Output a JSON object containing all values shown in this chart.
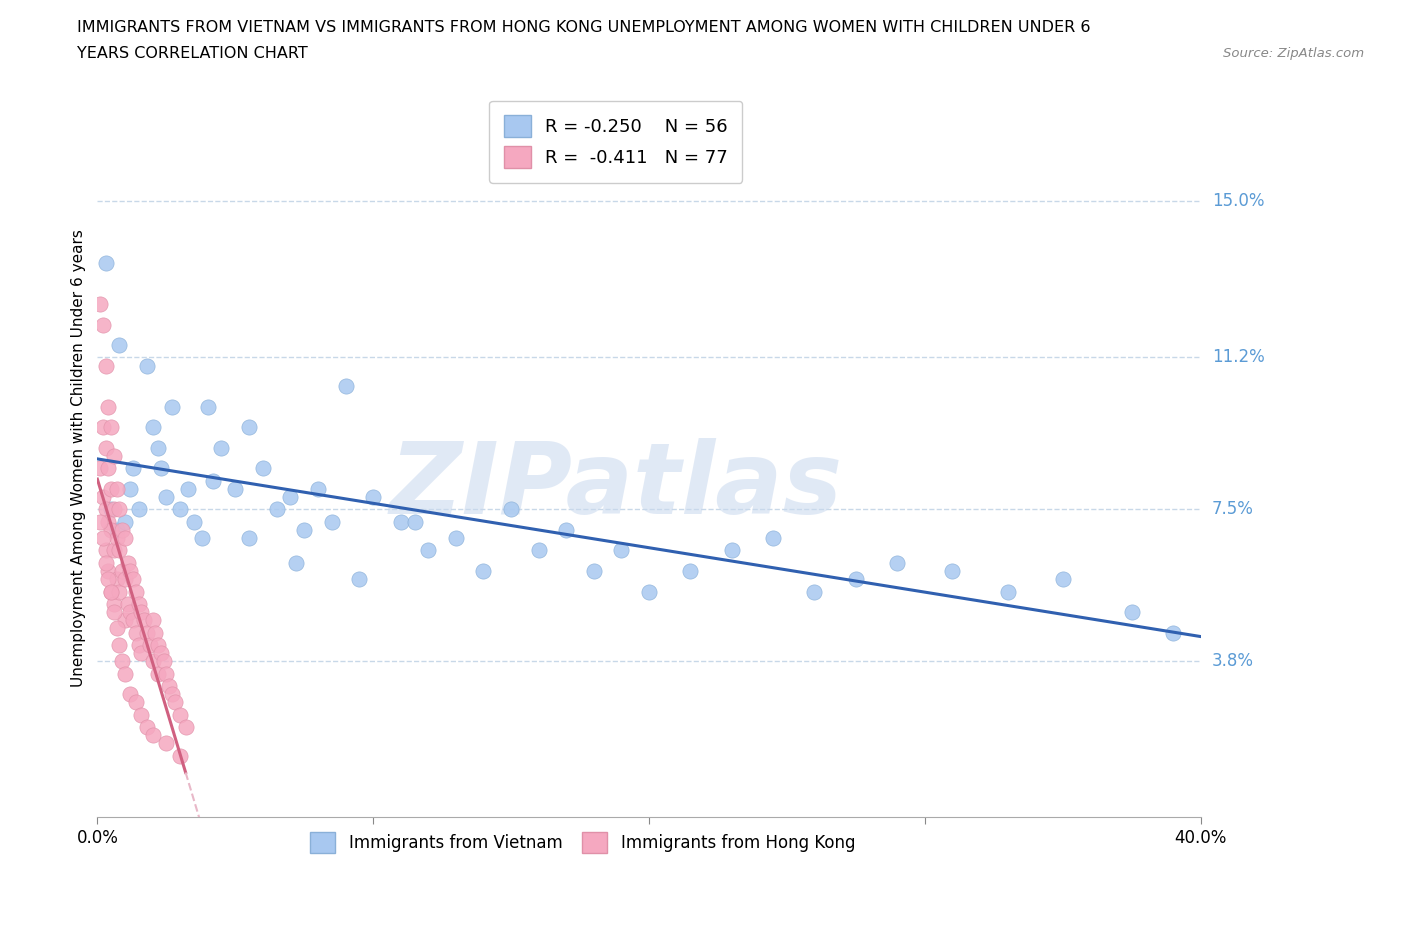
{
  "title_line1": "IMMIGRANTS FROM VIETNAM VS IMMIGRANTS FROM HONG KONG UNEMPLOYMENT AMONG WOMEN WITH CHILDREN UNDER 6",
  "title_line2": "YEARS CORRELATION CHART",
  "source": "Source: ZipAtlas.com",
  "ylabel": "Unemployment Among Women with Children Under 6 years",
  "xlim": [
    0.0,
    0.4
  ],
  "ylim": [
    0.0,
    0.175
  ],
  "yticks": [
    0.038,
    0.075,
    0.112,
    0.15
  ],
  "ytick_labels": [
    "3.8%",
    "7.5%",
    "11.2%",
    "15.0%"
  ],
  "xtick_labels": [
    "0.0%",
    "40.0%"
  ],
  "legend_r1": "R = -0.250",
  "legend_n1": "N = 56",
  "legend_r2": "R =  -0.411",
  "legend_n2": "N = 77",
  "color_vietnam": "#a8c8f0",
  "color_hongkong": "#f5a8c0",
  "color_vietnam_line": "#3060b0",
  "color_hongkong_line": "#d06080",
  "color_hongkong_line_dashed": "#e8b8c8",
  "color_ytick_labels": "#5b9bd5",
  "color_grid": "#c8d8e8",
  "watermark_text": "ZIPatlas",
  "watermark_color": "#c8d8ee",
  "bottom_legend_label1": "Immigrants from Vietnam",
  "bottom_legend_label2": "Immigrants from Hong Kong",
  "vietnam_x": [
    0.003,
    0.005,
    0.007,
    0.01,
    0.012,
    0.015,
    0.018,
    0.02,
    0.023,
    0.025,
    0.027,
    0.03,
    0.033,
    0.035,
    0.038,
    0.04,
    0.045,
    0.05,
    0.055,
    0.06,
    0.065,
    0.07,
    0.075,
    0.08,
    0.085,
    0.09,
    0.1,
    0.11,
    0.12,
    0.13,
    0.14,
    0.15,
    0.16,
    0.17,
    0.18,
    0.19,
    0.2,
    0.215,
    0.23,
    0.245,
    0.26,
    0.275,
    0.29,
    0.31,
    0.33,
    0.35,
    0.375,
    0.39,
    0.008,
    0.013,
    0.022,
    0.042,
    0.055,
    0.072,
    0.095,
    0.115
  ],
  "vietnam_y": [
    0.135,
    0.075,
    0.07,
    0.072,
    0.08,
    0.075,
    0.11,
    0.095,
    0.085,
    0.078,
    0.1,
    0.075,
    0.08,
    0.072,
    0.068,
    0.1,
    0.09,
    0.08,
    0.095,
    0.085,
    0.075,
    0.078,
    0.07,
    0.08,
    0.072,
    0.105,
    0.078,
    0.072,
    0.065,
    0.068,
    0.06,
    0.075,
    0.065,
    0.07,
    0.06,
    0.065,
    0.055,
    0.06,
    0.065,
    0.068,
    0.055,
    0.058,
    0.062,
    0.06,
    0.055,
    0.058,
    0.05,
    0.045,
    0.115,
    0.085,
    0.09,
    0.082,
    0.068,
    0.062,
    0.058,
    0.072
  ],
  "hongkong_x": [
    0.001,
    0.001,
    0.002,
    0.002,
    0.002,
    0.003,
    0.003,
    0.003,
    0.003,
    0.004,
    0.004,
    0.004,
    0.004,
    0.005,
    0.005,
    0.005,
    0.005,
    0.006,
    0.006,
    0.006,
    0.006,
    0.007,
    0.007,
    0.007,
    0.008,
    0.008,
    0.008,
    0.009,
    0.009,
    0.01,
    0.01,
    0.01,
    0.011,
    0.011,
    0.012,
    0.012,
    0.013,
    0.013,
    0.014,
    0.014,
    0.015,
    0.015,
    0.016,
    0.016,
    0.017,
    0.018,
    0.019,
    0.02,
    0.02,
    0.021,
    0.022,
    0.022,
    0.023,
    0.024,
    0.025,
    0.026,
    0.027,
    0.028,
    0.03,
    0.032,
    0.001,
    0.002,
    0.003,
    0.004,
    0.005,
    0.006,
    0.007,
    0.008,
    0.009,
    0.01,
    0.012,
    0.014,
    0.016,
    0.018,
    0.02,
    0.025,
    0.03
  ],
  "hongkong_y": [
    0.125,
    0.085,
    0.12,
    0.095,
    0.078,
    0.11,
    0.09,
    0.075,
    0.065,
    0.1,
    0.085,
    0.072,
    0.06,
    0.095,
    0.08,
    0.07,
    0.055,
    0.088,
    0.075,
    0.065,
    0.052,
    0.08,
    0.068,
    0.058,
    0.075,
    0.065,
    0.055,
    0.07,
    0.06,
    0.068,
    0.058,
    0.048,
    0.062,
    0.052,
    0.06,
    0.05,
    0.058,
    0.048,
    0.055,
    0.045,
    0.052,
    0.042,
    0.05,
    0.04,
    0.048,
    0.045,
    0.042,
    0.048,
    0.038,
    0.045,
    0.042,
    0.035,
    0.04,
    0.038,
    0.035,
    0.032,
    0.03,
    0.028,
    0.025,
    0.022,
    0.072,
    0.068,
    0.062,
    0.058,
    0.055,
    0.05,
    0.046,
    0.042,
    0.038,
    0.035,
    0.03,
    0.028,
    0.025,
    0.022,
    0.02,
    0.018,
    0.015
  ]
}
